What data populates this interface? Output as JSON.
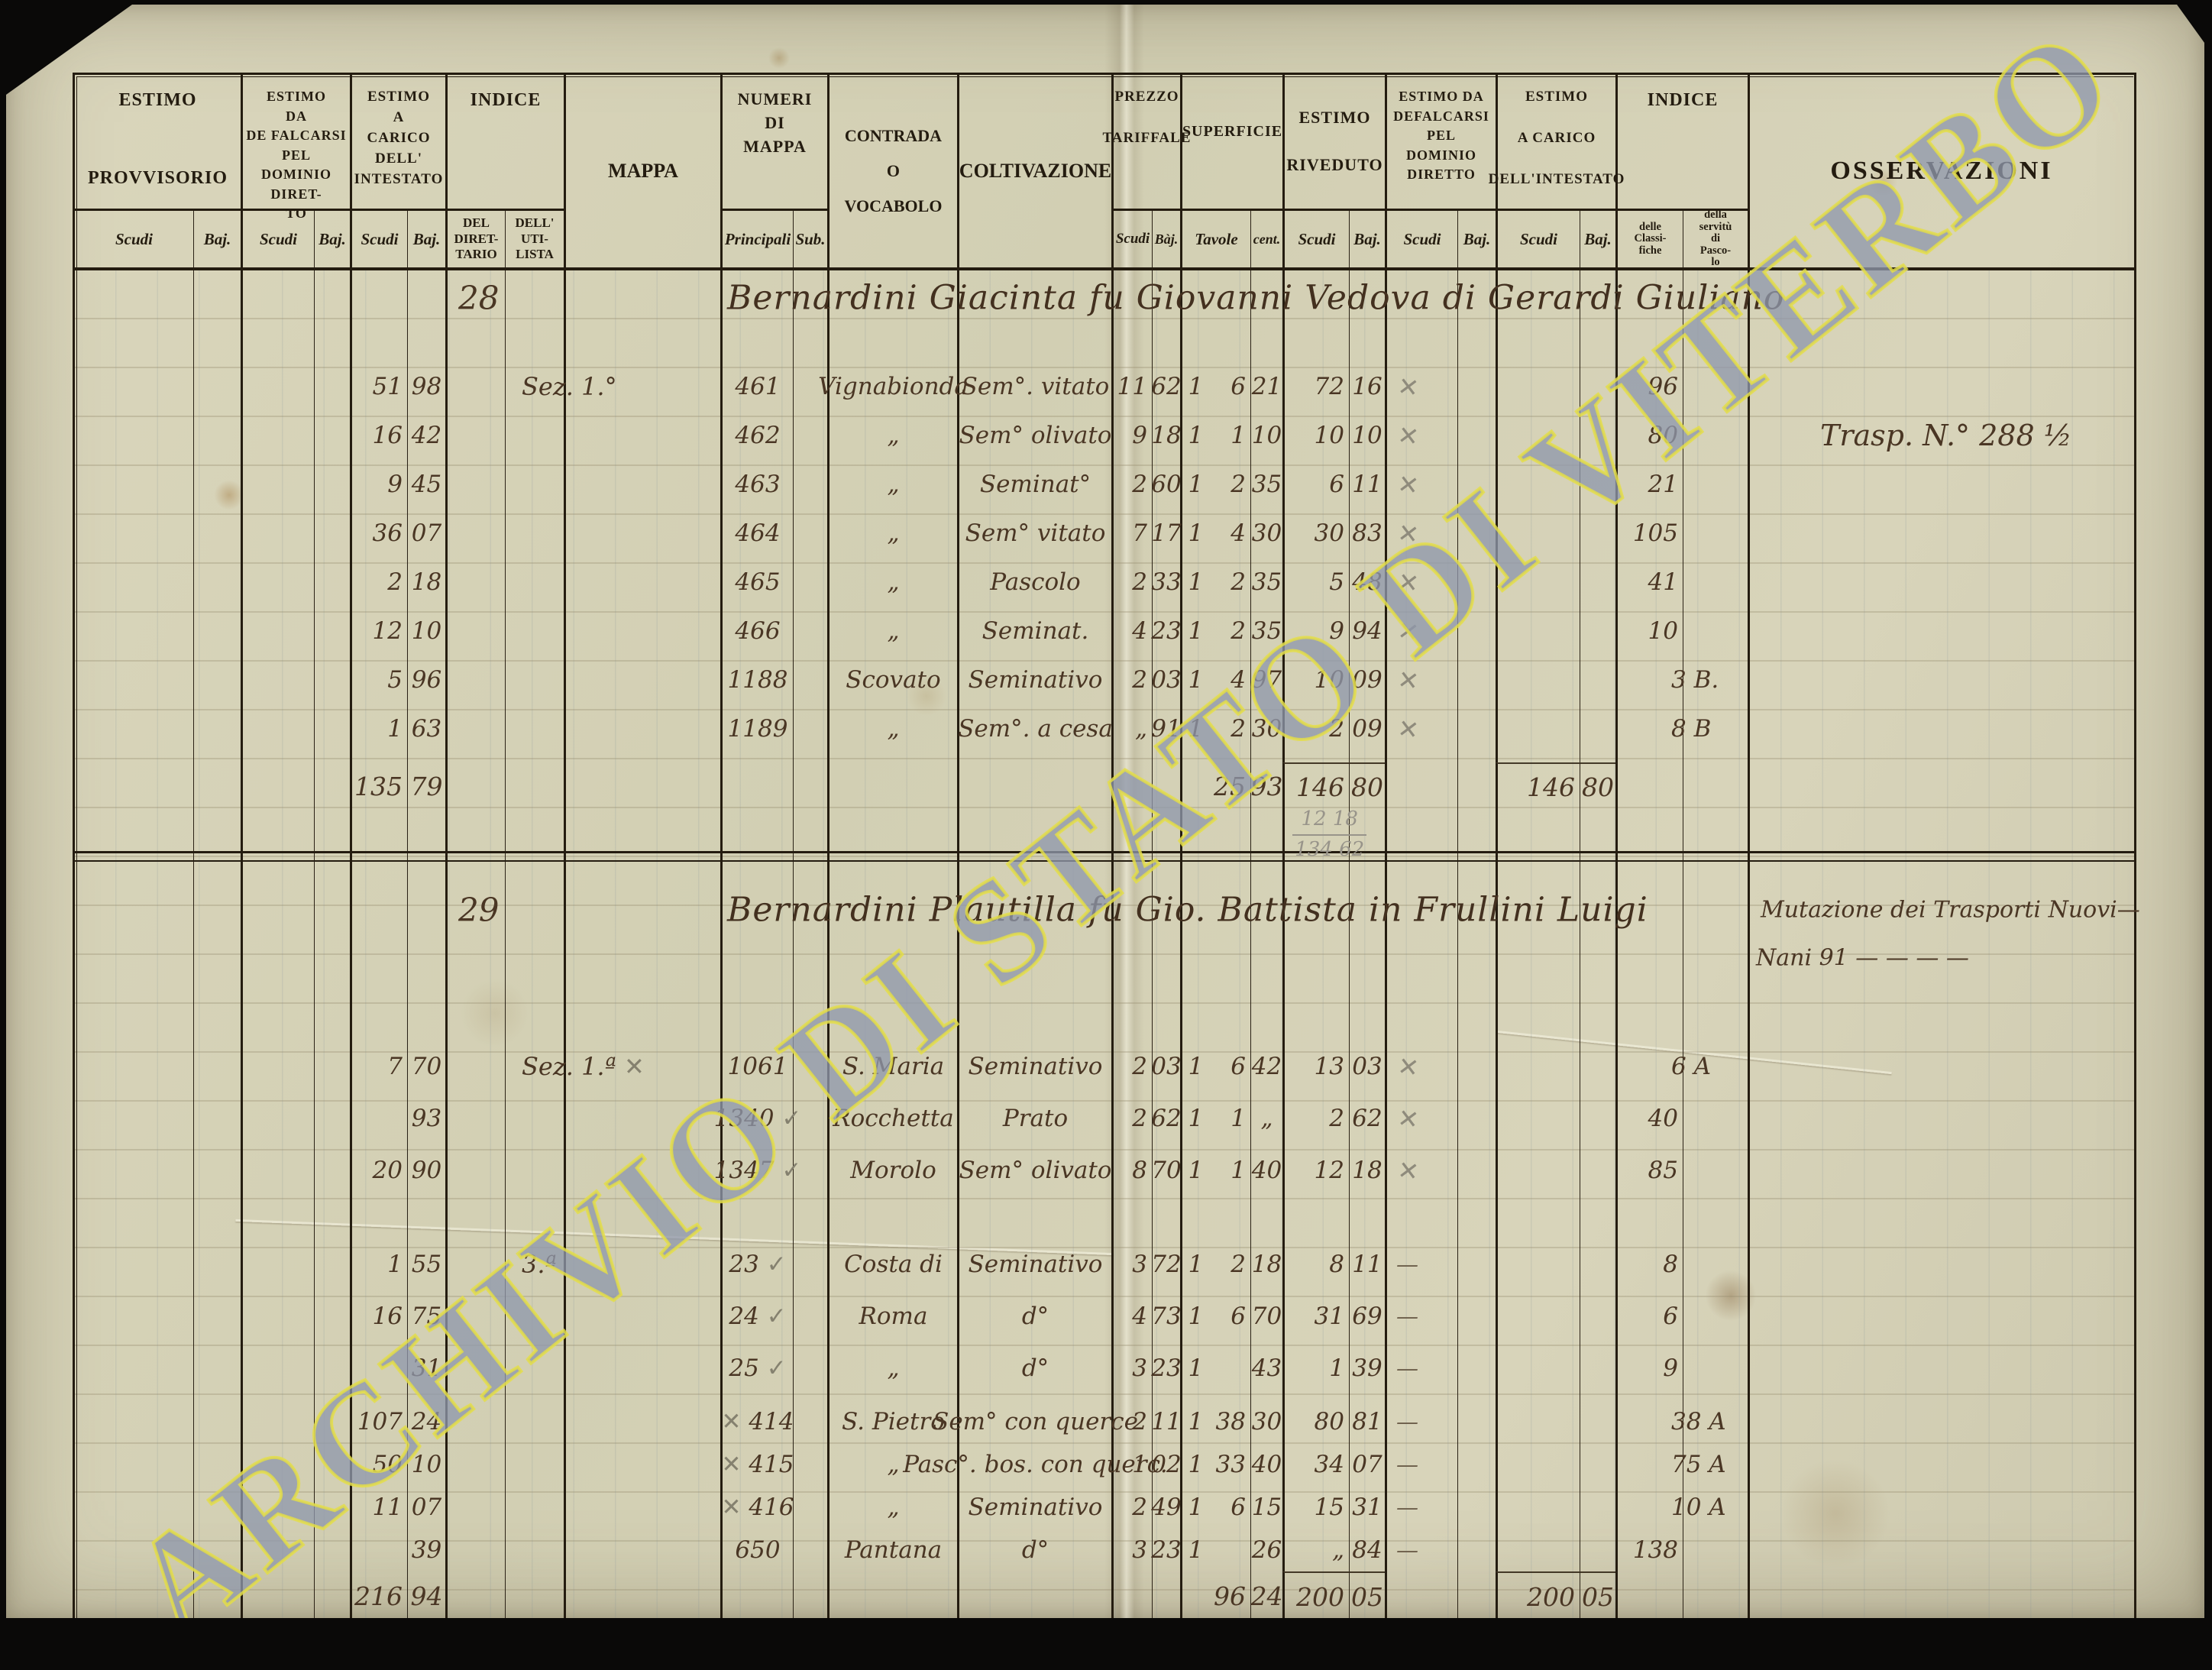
{
  "watermark": {
    "text": "ARCHIVIO DI STATO DI VITERBO",
    "fill": "#7482cd",
    "outline": "#e4de46"
  },
  "header": {
    "groups": [
      {
        "label": "ESTIMO\n\n\nPROVVISORIO",
        "subs": [
          "Scudi",
          "Baj."
        ]
      },
      {
        "label": "ESTIMO\nDA\nDE FALCARSI\nPEL\nDOMINIO DIRET-\nTO",
        "subs": [
          "Scudi",
          "Baj."
        ]
      },
      {
        "label": "ESTIMO\nA\nCARICO\nDELL'\nINTESTATO",
        "subs": [
          "Scudi",
          "Baj."
        ]
      },
      {
        "label": "INDICE",
        "subs": [
          "DEL\nDIRET-\nTARIO",
          "DELL'\nUTI-\nLISTA"
        ]
      },
      {
        "label": "MAPPA",
        "subs": []
      },
      {
        "label": "NUMERI\nDI\nMAPPA",
        "subs": [
          "Principali",
          "Sub."
        ]
      },
      {
        "label": "CONTRADA\nO\nVOCABOLO",
        "subs": []
      },
      {
        "label": "COLTIVAZIONE",
        "subs": []
      },
      {
        "label": "PREZZO\n\nTARIFFALE",
        "subs": [
          "Scudi",
          "Bàj."
        ]
      },
      {
        "label": "SUPERFICIE",
        "subs": [
          "Tavole",
          "cent."
        ]
      },
      {
        "label": "ESTIMO\n\nRIVEDUTO",
        "subs": [
          "Scudi",
          "Baj."
        ]
      },
      {
        "label": "ESTIMO DA\nDEFALCARSI\nPEL\nDOMINIO\nDIRETTO",
        "subs": [
          "Scudi",
          "Baj."
        ]
      },
      {
        "label": "ESTIMO\n\nA CARICO\n\nDELL'INTESTATO",
        "subs": [
          "Scudi",
          "Baj."
        ]
      },
      {
        "label": "INDICE",
        "subs": [
          "delle\nClassi-\nfiche",
          "della\nservitù\ndi\nPasco-\nlo"
        ]
      },
      {
        "label": "OSSERVAZIONI",
        "subs": []
      }
    ]
  },
  "blocks": [
    {
      "number": "28",
      "name": "Bernardini Giacinta fu Giovanni Vedova di Gerardi Giuliano",
      "heading_note": "",
      "heading_note2": "",
      "rows": [
        {
          "carico": [
            "51",
            "98"
          ],
          "mappa": "Sez. 1.°",
          "princ": "461",
          "contrada": "Vignabionda",
          "colt": "Sem°. vitato",
          "prezzo": [
            "11",
            "62"
          ],
          "sup": [
            "1",
            "6",
            "21"
          ],
          "riv": [
            "72",
            "16"
          ],
          "mark": "x",
          "clas": "96",
          "pasc": "",
          "oss": ""
        },
        {
          "carico": [
            "16",
            "42"
          ],
          "mappa": "",
          "princ": "462",
          "contrada": "„",
          "colt": "Sem° olivato",
          "prezzo": [
            "9",
            "18"
          ],
          "sup": [
            "1",
            "1",
            "10"
          ],
          "riv": [
            "10",
            "10"
          ],
          "mark": "x",
          "clas": "80",
          "pasc": "",
          "oss": "Trasp. N.° 288 ½"
        },
        {
          "carico": [
            "9",
            "45"
          ],
          "mappa": "",
          "princ": "463",
          "contrada": "„",
          "colt": "Seminat°",
          "prezzo": [
            "2",
            "60"
          ],
          "sup": [
            "1",
            "2",
            "35"
          ],
          "riv": [
            "6",
            "11"
          ],
          "mark": "x",
          "clas": "21",
          "pasc": "",
          "oss": ""
        },
        {
          "carico": [
            "36",
            "07"
          ],
          "mappa": "",
          "princ": "464",
          "contrada": "„",
          "colt": "Sem° vitato",
          "prezzo": [
            "7",
            "17"
          ],
          "sup": [
            "1",
            "4",
            "30"
          ],
          "riv": [
            "30",
            "83"
          ],
          "mark": "x",
          "clas": "105",
          "pasc": "",
          "oss": ""
        },
        {
          "carico": [
            "2",
            "18"
          ],
          "mappa": "",
          "princ": "465",
          "contrada": "„",
          "colt": "Pascolo",
          "prezzo": [
            "2",
            "33"
          ],
          "sup": [
            "1",
            "2",
            "35"
          ],
          "riv": [
            "5",
            "48"
          ],
          "mark": "x",
          "clas": "41",
          "pasc": "",
          "oss": ""
        },
        {
          "carico": [
            "12",
            "10"
          ],
          "mappa": "",
          "princ": "466",
          "contrada": "„",
          "colt": "Seminat.",
          "prezzo": [
            "4",
            "23"
          ],
          "sup": [
            "1",
            "2",
            "35"
          ],
          "riv": [
            "9",
            "94"
          ],
          "mark": "x",
          "clas": "10",
          "pasc": "",
          "oss": ""
        },
        {
          "carico": [
            "5",
            "96"
          ],
          "mappa": "",
          "princ": "1188",
          "contrada": "Scovato",
          "colt": "Seminativo",
          "prezzo": [
            "2",
            "03"
          ],
          "sup": [
            "1",
            "4",
            "97"
          ],
          "riv": [
            "10",
            "09"
          ],
          "mark": "x",
          "clas": "",
          "pasc": "3 B.",
          "oss": ""
        },
        {
          "carico": [
            "1",
            "63"
          ],
          "mappa": "",
          "princ": "1189",
          "contrada": "„",
          "colt": "Sem°. a cesa",
          "prezzo": [
            "„",
            "91"
          ],
          "sup": [
            "1",
            "2",
            "30"
          ],
          "riv": [
            "2",
            "09"
          ],
          "mark": "x",
          "clas": "",
          "pasc": "8 B",
          "oss": ""
        }
      ],
      "total": {
        "carico": [
          "135",
          "79"
        ],
        "sup": [
          "",
          "25",
          "93"
        ],
        "riv": [
          "146",
          "80"
        ],
        "car2": [
          "146",
          "80"
        ],
        "pencil": [
          "12 18",
          "134 62"
        ]
      }
    },
    {
      "number": "29",
      "name": "Bernardini Plautilla fu Gio. Battista in Frullini Luigi",
      "heading_note": "Mutazione dei Trasporti Nuovi—",
      "heading_note2": "Nani 91 —  —  —  —",
      "rows": [
        {
          "carico": [
            "7",
            "70"
          ],
          "mappa": "Sez. 1.ª ✕",
          "princ": "1061",
          "contrada": "S. Maria",
          "colt": "Seminativo",
          "prezzo": [
            "2",
            "03"
          ],
          "sup": [
            "1",
            "6",
            "42"
          ],
          "riv": [
            "13",
            "03"
          ],
          "mark": "x",
          "clas": "",
          "pasc": "6 A",
          "oss": ""
        },
        {
          "carico": [
            "",
            "93"
          ],
          "mappa": "",
          "princ": "1340 ✓",
          "contrada": "Rocchetta",
          "colt": "Prato",
          "prezzo": [
            "2",
            "62"
          ],
          "sup": [
            "1",
            "1",
            "„"
          ],
          "riv": [
            "2",
            "62"
          ],
          "mark": "x",
          "clas": "40",
          "pasc": "",
          "oss": ""
        },
        {
          "carico": [
            "20",
            "90"
          ],
          "mappa": "",
          "princ": "1347 ✓",
          "contrada": "Morolo",
          "colt": "Sem° olivato",
          "prezzo": [
            "8",
            "70"
          ],
          "sup": [
            "1",
            "1",
            "40"
          ],
          "riv": [
            "12",
            "18"
          ],
          "mark": "x",
          "clas": "85",
          "pasc": "",
          "oss": ""
        },
        {
          "carico": [
            "1",
            "55"
          ],
          "mappa": "3.ª",
          "princ": "23 ✓",
          "contrada": "Costa di",
          "colt": "Seminativo",
          "prezzo": [
            "3",
            "72"
          ],
          "sup": [
            "1",
            "2",
            "18"
          ],
          "riv": [
            "8",
            "11"
          ],
          "mark": "-",
          "clas": "8",
          "pasc": "",
          "oss": ""
        },
        {
          "carico": [
            "16",
            "75"
          ],
          "mappa": "",
          "princ": "24 ✓",
          "contrada": "Roma",
          "colt": "d°",
          "prezzo": [
            "4",
            "73"
          ],
          "sup": [
            "1",
            "6",
            "70"
          ],
          "riv": [
            "31",
            "69"
          ],
          "mark": "-",
          "clas": "6",
          "pasc": "",
          "oss": ""
        },
        {
          "carico": [
            "",
            "31"
          ],
          "mappa": "",
          "princ": "25 ✓",
          "contrada": "„",
          "colt": "d°",
          "prezzo": [
            "3",
            "23"
          ],
          "sup": [
            "1",
            "",
            "43"
          ],
          "riv": [
            "1",
            "39"
          ],
          "mark": "-",
          "clas": "9",
          "pasc": "",
          "oss": ""
        },
        {
          "carico": [
            "107",
            "24"
          ],
          "mappa": "",
          "princ": "✕ 414",
          "contrada": "S. Pietro",
          "colt": "Sem° con querce",
          "prezzo": [
            "2",
            "11"
          ],
          "sup": [
            "1",
            "38",
            "30"
          ],
          "riv": [
            "80",
            "81"
          ],
          "mark": "-",
          "clas": "",
          "pasc": "38 A",
          "oss": ""
        },
        {
          "carico": [
            "50",
            "10"
          ],
          "mappa": "",
          "princ": "✕ 415",
          "contrada": "„",
          "colt": "Pasc°. bos. con querc.",
          "prezzo": [
            "1",
            "02"
          ],
          "sup": [
            "1",
            "33",
            "40"
          ],
          "riv": [
            "34",
            "07"
          ],
          "mark": "-",
          "clas": "",
          "pasc": "75 A",
          "oss": ""
        },
        {
          "carico": [
            "11",
            "07"
          ],
          "mappa": "",
          "princ": "✕ 416",
          "contrada": "„",
          "colt": "Seminativo",
          "prezzo": [
            "2",
            "49"
          ],
          "sup": [
            "1",
            "6",
            "15"
          ],
          "riv": [
            "15",
            "31"
          ],
          "mark": "-",
          "clas": "",
          "pasc": "10 A",
          "oss": ""
        },
        {
          "carico": [
            "",
            "39"
          ],
          "mappa": "",
          "princ": "650",
          "contrada": "Pantana",
          "colt": "d°",
          "prezzo": [
            "3",
            "23"
          ],
          "sup": [
            "1",
            "",
            "26"
          ],
          "riv": [
            "„",
            "84"
          ],
          "mark": "-",
          "clas": "138",
          "pasc": "",
          "oss": ""
        }
      ],
      "total": {
        "carico": [
          "216",
          "94"
        ],
        "sup": [
          "",
          "96",
          "24"
        ],
        "riv": [
          "200",
          "05"
        ],
        "car2": [
          "200",
          "05"
        ],
        "pencil": []
      }
    }
  ]
}
